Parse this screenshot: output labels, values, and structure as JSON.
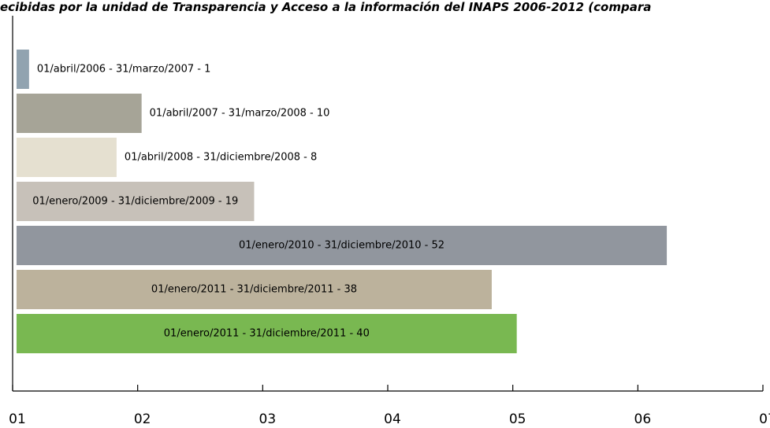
{
  "chart_data": {
    "type": "bar",
    "orientation": "horizontal",
    "title": "ecibidas por la unidad de Transparencia y Acceso a la información del INAPS 2006-2012 (compara",
    "categories": [
      "01/abril/2006 - 31/marzo/2007 - 1",
      "01/abril/2007 - 31/marzo/2008 - 10",
      "01/abril/2008 - 31/diciembre/2008 - 8",
      "01/enero/2009 - 31/diciembre/2009 - 19",
      "01/enero/2010 - 31/diciembre/2010 - 52",
      "01/enero/2011 - 31/diciembre/2011 - 38",
      "01/enero/2011 - 31/diciembre/2011 - 40"
    ],
    "values": [
      1,
      10,
      8,
      19,
      52,
      38,
      40
    ],
    "colors": [
      "#91a3b0",
      "#a6a497",
      "#e5e0d0",
      "#c7c1b9",
      "#91969e",
      "#bcb29c",
      "#79b851"
    ],
    "xlim": [
      0,
      60
    ],
    "xticks": [
      {
        "value": 0,
        "label": "01"
      },
      {
        "value": 10,
        "label": "02"
      },
      {
        "value": 20,
        "label": "03"
      },
      {
        "value": 30,
        "label": "04"
      },
      {
        "value": 40,
        "label": "05"
      },
      {
        "value": 50,
        "label": "06"
      },
      {
        "value": 60,
        "label": "07"
      }
    ]
  }
}
